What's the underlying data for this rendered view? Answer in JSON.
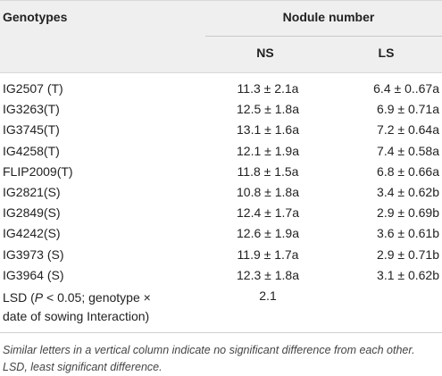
{
  "header": {
    "genotypes": "Genotypes",
    "nodule_number": "Nodule number",
    "ns": "NS",
    "ls": "LS"
  },
  "rows": [
    {
      "genotype": "IG2507 (T)",
      "ns": "11.3 ± 2.1a",
      "ls": "6.4 ± 0..67a"
    },
    {
      "genotype": "IG3263(T)",
      "ns": "12.5 ± 1.8a",
      "ls": "6.9 ± 0.71a"
    },
    {
      "genotype": "IG3745(T)",
      "ns": "13.1 ± 1.6a",
      "ls": "7.2 ± 0.64a"
    },
    {
      "genotype": "IG4258(T)",
      "ns": "12.1 ± 1.9a",
      "ls": "7.4 ± 0.58a"
    },
    {
      "genotype": "FLIP2009(T)",
      "ns": "11.8 ± 1.5a",
      "ls": "6.8 ± 0.66a"
    },
    {
      "genotype": "IG2821(S)",
      "ns": "10.8 ± 1.8a",
      "ls": "3.4 ± 0.62b"
    },
    {
      "genotype": "IG2849(S)",
      "ns": "12.4 ± 1.7a",
      "ls": "2.9 ± 0.69b"
    },
    {
      "genotype": "IG4242(S)",
      "ns": "12.6 ± 1.9a",
      "ls": "3.6 ± 0.61b"
    },
    {
      "genotype": "IG3973 (S)",
      "ns": "11.9 ± 1.7a",
      "ls": "2.9 ± 0.71b"
    },
    {
      "genotype": "IG3964 (S)",
      "ns": "12.3 ± 1.8a",
      "ls": "3.1 ± 0.62b"
    }
  ],
  "lsd": {
    "prefix": "LSD (",
    "p": "P",
    "line1_rest": " < 0.05; genotype ×",
    "line2": "date of sowing Interaction)",
    "value": "2.1"
  },
  "footnote": "Similar letters in a vertical column indicate no significant difference from each other. LSD, least significant difference."
}
